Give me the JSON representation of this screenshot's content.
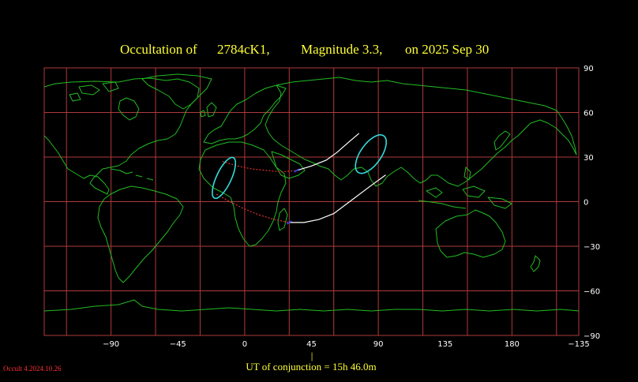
{
  "title": {
    "prefix": "Occultation  of",
    "object": "2784cK1,",
    "magnitude": "Magnitude 3.3,",
    "date": "on  2025 Sep 30"
  },
  "axes": {
    "lon_labels": [
      "−90",
      "−45",
      "0",
      "45",
      "90",
      "135",
      "180",
      "−135"
    ],
    "lat_labels": [
      "90",
      "60",
      "30",
      "0",
      "−30",
      "−60",
      "−90"
    ]
  },
  "conjunction": {
    "text": "UT of conjunction = 15h 46.0m",
    "marker": "|"
  },
  "version": "Occult 4.2024.10.26",
  "colors": {
    "background": "#000000",
    "grid": "#b03a3a",
    "coast": "#22bb22",
    "path": "#ffffff",
    "path_dotted": "#e03030",
    "ellipse": "#33dddd",
    "terminator_blue": "#3344ff",
    "title": "#ffff33"
  },
  "chart_data": {
    "type": "map",
    "projection": "equirectangular",
    "central_meridian": 45,
    "lon_range": [
      -135,
      225
    ],
    "lat_range": [
      -90,
      90
    ],
    "grid_step_deg": 30,
    "shadow_path_edges": [
      {
        "name": "north",
        "points": [
          [
            -15,
            27
          ],
          [
            -5,
            24
          ],
          [
            5,
            22
          ],
          [
            15,
            21
          ],
          [
            25,
            20
          ],
          [
            35,
            21
          ],
          [
            45,
            24
          ],
          [
            55,
            28
          ],
          [
            62,
            33
          ],
          [
            70,
            40
          ],
          [
            77,
            46
          ]
        ]
      },
      {
        "name": "south",
        "points": [
          [
            -19,
            5
          ],
          [
            -10,
            0
          ],
          [
            0,
            -5
          ],
          [
            10,
            -9
          ],
          [
            20,
            -12
          ],
          [
            30,
            -14
          ],
          [
            40,
            -14
          ],
          [
            50,
            -12
          ],
          [
            60,
            -8
          ],
          [
            72,
            1
          ],
          [
            84,
            10
          ],
          [
            95,
            18
          ]
        ]
      }
    ],
    "visible_from_lon": 38,
    "end_ellipses": [
      {
        "center": [
          -14,
          16
        ],
        "semi_axes_deg": [
          5,
          15
        ],
        "tilt": -25
      },
      {
        "center": [
          85,
          32
        ],
        "semi_axes_deg": [
          7,
          15
        ],
        "tilt": -35
      }
    ]
  }
}
